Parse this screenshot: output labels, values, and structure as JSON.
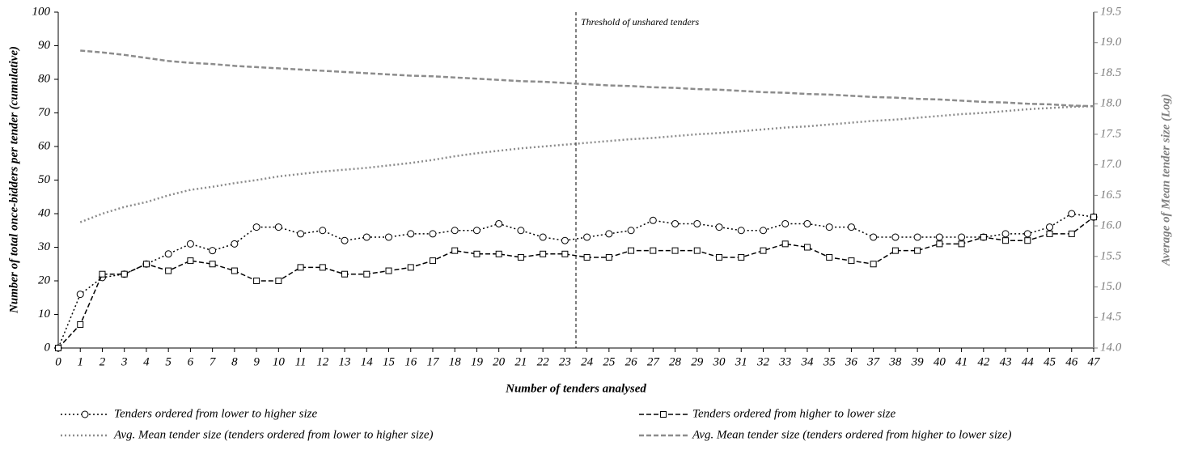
{
  "chart_data": {
    "type": "line",
    "xlabel": "Number of tenders analysed",
    "ylabel": "Number of total once-bidders per tender (cumulative)",
    "y2label": "Average of Mean tender size (Log)",
    "xlim": [
      0,
      47
    ],
    "xticks": [
      0,
      1,
      2,
      3,
      4,
      5,
      6,
      7,
      8,
      9,
      10,
      11,
      12,
      13,
      14,
      15,
      16,
      17,
      18,
      19,
      20,
      21,
      22,
      23,
      24,
      25,
      26,
      27,
      28,
      29,
      30,
      31,
      32,
      33,
      34,
      35,
      36,
      37,
      38,
      39,
      40,
      41,
      42,
      43,
      44,
      45,
      46,
      47
    ],
    "ylim": [
      0,
      100
    ],
    "yticks": [
      0,
      10,
      20,
      30,
      40,
      50,
      60,
      70,
      80,
      90,
      100
    ],
    "y2lim": [
      14.0,
      19.5
    ],
    "y2ticks": [
      {
        "value": 14.0,
        "label": "14.0"
      },
      {
        "value": 14.5,
        "label": "14.5"
      },
      {
        "value": 15.0,
        "label": "15.0"
      },
      {
        "value": 15.5,
        "label": "15.5"
      },
      {
        "value": 16.0,
        "label": "16.0"
      },
      {
        "value": 16.5,
        "label": "16.5"
      },
      {
        "value": 17.0,
        "label": "17.0"
      },
      {
        "value": 17.5,
        "label": "17.5"
      },
      {
        "value": 18.0,
        "label": "18.0"
      },
      {
        "value": 18.5,
        "label": "18.5"
      },
      {
        "value": 19.0,
        "label": "19.0"
      },
      {
        "value": 19.5,
        "label": "19.5"
      }
    ],
    "x": [
      0,
      1,
      2,
      3,
      4,
      5,
      6,
      7,
      8,
      9,
      10,
      11,
      12,
      13,
      14,
      15,
      16,
      17,
      18,
      19,
      20,
      21,
      22,
      23,
      24,
      25,
      26,
      27,
      28,
      29,
      30,
      31,
      32,
      33,
      34,
      35,
      36,
      37,
      38,
      39,
      40,
      41,
      42,
      43,
      44,
      45,
      46,
      47
    ],
    "threshold": {
      "x": 23.5,
      "label": "Threshold of unshared tenders"
    },
    "series": [
      {
        "name": "Tenders ordered from lower to higher size",
        "color": "#000000",
        "dash": "dotted",
        "marker": "circle",
        "values": [
          0,
          16,
          21,
          22,
          25,
          28,
          31,
          29,
          31,
          36,
          36,
          34,
          35,
          32,
          33,
          33,
          34,
          34,
          35,
          35,
          37,
          35,
          33,
          32,
          33,
          34,
          35,
          38,
          37,
          37,
          36,
          35,
          35,
          37,
          37,
          36,
          36,
          33,
          33,
          33,
          33,
          33,
          33,
          34,
          34,
          36,
          40,
          39
        ]
      },
      {
        "name": "Tenders ordered from higher to lower size",
        "color": "#000000",
        "dash": "dashed",
        "marker": "square",
        "values": [
          0,
          7,
          22,
          22,
          25,
          23,
          26,
          25,
          23,
          20,
          20,
          24,
          24,
          22,
          22,
          23,
          24,
          26,
          29,
          28,
          28,
          27,
          28,
          28,
          27,
          27,
          29,
          29,
          29,
          29,
          27,
          27,
          29,
          31,
          30,
          27,
          26,
          25,
          29,
          29,
          31,
          31,
          33,
          32,
          32,
          34,
          34,
          39
        ]
      },
      {
        "name": "Avg. Mean tender size (tenders ordered from lower to higher size)",
        "color": "#8c8c8c",
        "dash": "dotted",
        "axis": "y2",
        "values": [
          null,
          16.06,
          16.2,
          16.31,
          16.39,
          16.5,
          16.59,
          16.64,
          16.7,
          16.75,
          16.81,
          16.85,
          16.89,
          16.92,
          16.95,
          16.99,
          17.03,
          17.08,
          17.14,
          17.19,
          17.23,
          17.27,
          17.3,
          17.33,
          17.36,
          17.39,
          17.42,
          17.44,
          17.47,
          17.5,
          17.52,
          17.55,
          17.58,
          17.61,
          17.63,
          17.66,
          17.69,
          17.72,
          17.74,
          17.77,
          17.8,
          17.83,
          17.85,
          17.88,
          17.91,
          17.93,
          17.95,
          17.96
        ]
      },
      {
        "name": "Avg. Mean tender size (tenders ordered from higher to lower size)",
        "color": "#8c8c8c",
        "dash": "dashed",
        "axis": "y2",
        "values": [
          null,
          18.87,
          18.84,
          18.8,
          18.75,
          18.7,
          18.67,
          18.65,
          18.62,
          18.6,
          18.58,
          18.56,
          18.54,
          18.52,
          18.5,
          18.48,
          18.46,
          18.45,
          18.43,
          18.41,
          18.39,
          18.37,
          18.36,
          18.34,
          18.32,
          18.3,
          18.29,
          18.27,
          18.26,
          18.24,
          18.23,
          18.21,
          18.19,
          18.18,
          18.16,
          18.15,
          18.13,
          18.11,
          18.1,
          18.08,
          18.07,
          18.05,
          18.03,
          18.02,
          18.0,
          17.99,
          17.97,
          17.96
        ]
      }
    ]
  }
}
